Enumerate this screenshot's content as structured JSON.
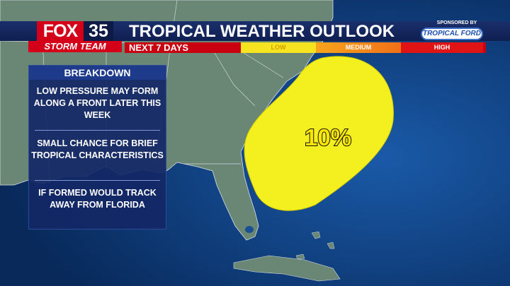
{
  "brand": {
    "logo_text": "FOX",
    "logo_number": "35",
    "team": "STORM TEAM"
  },
  "header": {
    "title": "TROPICAL WEATHER OUTLOOK",
    "subtitle": "NEXT 7 DAYS"
  },
  "sponsor": {
    "label": "SPONSORED BY",
    "name": "TROPICAL FORD"
  },
  "scale": {
    "low": "LOW",
    "medium": "MEDIUM",
    "high": "HIGH"
  },
  "breakdown": {
    "title": "BREAKDOWN",
    "items": [
      "LOW PRESSURE MAY FORM ALONG A FRONT LATER THIS WEEK",
      "SMALL CHANCE FOR BRIEF TROPICAL CHARACTERISTICS",
      "IF FORMED WOULD TRACK AWAY FROM FLORIDA"
    ]
  },
  "outlook_area": {
    "probability": "10%",
    "probability_value": 0.1,
    "risk_level": "low",
    "color": "#f4ef1e"
  },
  "colors": {
    "ocean": "#0b3d7a",
    "land": "#6d8a78",
    "brand_red": "#d4001a",
    "panel": "#132866"
  }
}
